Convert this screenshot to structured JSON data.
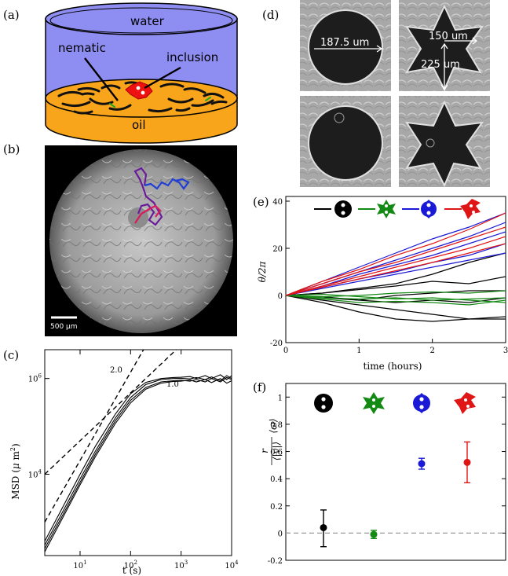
{
  "panels": {
    "a": {
      "label": "(a)",
      "water": "water",
      "nematic": "nematic",
      "inclusion": "inclusion",
      "oil": "oil",
      "colors": {
        "water": "#8e8ef2",
        "oil": "#f9a51b",
        "inclusion": "#ee1111"
      }
    },
    "b": {
      "label": "(b)",
      "scalebar": "500 µm",
      "track_colors": [
        "#6a1b9a",
        "#1f3fd6",
        "#d81b60"
      ]
    },
    "d": {
      "label": "(d)",
      "diameter": "187.5 um",
      "inner": "150 um",
      "outer": "225 um"
    },
    "e": {
      "label": "(e)"
    },
    "c": {
      "label": "(c)"
    },
    "f": {
      "label": "(f)"
    }
  },
  "chart_data": [
    {
      "id": "c",
      "type": "line",
      "scale": "log-log",
      "xlabel": "t (s)",
      "ylabel": "MSD (μ m²)",
      "ylabel_parts": {
        "main": "MSD (",
        "mu": "μ",
        "unit": " m",
        "exp": "2",
        "close": ")"
      },
      "xlim": [
        2,
        10000
      ],
      "ylim": [
        200,
        4000000
      ],
      "xticks": [
        {
          "value": 10,
          "base": "10",
          "exp": "1"
        },
        {
          "value": 100,
          "base": "10",
          "exp": "2"
        },
        {
          "value": 1000,
          "base": "10",
          "exp": "3"
        },
        {
          "value": 10000,
          "base": "10",
          "exp": "4"
        }
      ],
      "yticks": [
        {
          "value": 10000,
          "base": "10",
          "exp": "4"
        },
        {
          "value": 1000000,
          "base": "10",
          "exp": "6"
        }
      ],
      "reference_lines": [
        {
          "label": "2.0",
          "slope": 2,
          "points": [
            [
              2,
              1000
            ],
            [
              180,
              4000000
            ]
          ]
        },
        {
          "label": "1.0",
          "slope": 1,
          "points": [
            [
              2,
              10000
            ],
            [
              800,
              4000000
            ]
          ]
        }
      ],
      "series": [
        {
          "values_x": [
            2,
            5,
            10,
            20,
            50,
            100,
            200,
            400,
            700,
            1000,
            1500,
            2000,
            3000,
            4000,
            6000,
            8000,
            10000
          ],
          "values_y": [
            330,
            2000,
            8000,
            30000,
            150000,
            400000,
            750000,
            950000,
            1000000,
            1010000,
            980000,
            1050000,
            950000,
            1080000,
            900000,
            1150000,
            1000000
          ]
        },
        {
          "values_x": [
            2,
            5,
            10,
            20,
            50,
            100,
            200,
            400,
            700,
            1000,
            1500,
            2000,
            3000,
            4000,
            6000,
            8000,
            10000
          ],
          "values_y": [
            400,
            2500,
            10000,
            38000,
            180000,
            480000,
            830000,
            1000000,
            1050000,
            1060000,
            1100000,
            1000000,
            1150000,
            1000000,
            1200000,
            950000,
            1150000
          ]
        },
        {
          "values_x": [
            2,
            5,
            10,
            20,
            50,
            100,
            200,
            400,
            700,
            1000,
            1500,
            2000,
            3000,
            4000,
            6000,
            8000,
            10000
          ],
          "values_y": [
            280,
            1700,
            6800,
            26000,
            130000,
            350000,
            650000,
            850000,
            900000,
            920000,
            880000,
            950000,
            850000,
            1000000,
            850000,
            1050000,
            950000
          ]
        },
        {
          "values_x": [
            2,
            5,
            10,
            20,
            50,
            100,
            200,
            400,
            700,
            1000,
            1500,
            2000,
            3000,
            4000,
            6000,
            8000,
            10000
          ],
          "values_y": [
            240,
            1500,
            6000,
            23000,
            115000,
            310000,
            600000,
            800000,
            870000,
            880000,
            930000,
            850000,
            950000,
            820000,
            1000000,
            800000,
            900000
          ]
        }
      ]
    },
    {
      "id": "e",
      "type": "line",
      "xlabel": "time (hours)",
      "ylabel": "θ/2π",
      "xlim": [
        0,
        3
      ],
      "ylim": [
        -20,
        42
      ],
      "xticks": [
        0,
        1,
        2,
        3
      ],
      "yticks": [
        -20,
        0,
        20,
        40
      ],
      "legend_placement": "top",
      "series": [
        {
          "color": "#000000",
          "x": [
            0,
            0.5,
            1,
            1.5,
            2,
            2.5,
            3
          ],
          "y": [
            0,
            1,
            3,
            5,
            9,
            14,
            18
          ]
        },
        {
          "color": "#000000",
          "x": [
            0,
            0.5,
            1,
            1.5,
            2,
            2.5,
            3
          ],
          "y": [
            0,
            1,
            2.5,
            4,
            6,
            5,
            8
          ]
        },
        {
          "color": "#000000",
          "x": [
            0,
            0.5,
            1,
            1.5,
            2,
            2.5,
            3
          ],
          "y": [
            0,
            -1,
            -2,
            0,
            1,
            2,
            2
          ]
        },
        {
          "color": "#000000",
          "x": [
            0,
            0.5,
            1,
            1.5,
            2,
            2.5,
            3
          ],
          "y": [
            0,
            -0.5,
            -2,
            -3,
            -2,
            -3,
            -1
          ]
        },
        {
          "color": "#000000",
          "x": [
            0,
            0.5,
            1,
            1.5,
            2,
            2.5,
            3
          ],
          "y": [
            0,
            -2,
            -4,
            -6,
            -8,
            -10,
            -9
          ]
        },
        {
          "color": "#000000",
          "x": [
            0,
            0.5,
            1,
            1.5,
            2,
            2.5,
            3
          ],
          "y": [
            0,
            -3,
            -7,
            -10,
            -11,
            -10,
            -10
          ]
        },
        {
          "color": "#138a13",
          "x": [
            0,
            0.5,
            1,
            1.5,
            2,
            2.5,
            3
          ],
          "y": [
            0,
            -0.5,
            0,
            1,
            1.5,
            1,
            2
          ]
        },
        {
          "color": "#138a13",
          "x": [
            0,
            0.5,
            1,
            1.5,
            2,
            2.5,
            3
          ],
          "y": [
            0,
            -1,
            -1.5,
            -1,
            -2,
            -1.5,
            -1
          ]
        },
        {
          "color": "#138a13",
          "x": [
            0,
            0.5,
            1,
            1.5,
            2,
            2.5,
            3
          ],
          "y": [
            0,
            0.5,
            -0.5,
            -1.5,
            -1,
            -2,
            -3
          ]
        },
        {
          "color": "#138a13",
          "x": [
            0,
            0.5,
            1,
            1.5,
            2,
            2.5,
            3
          ],
          "y": [
            0,
            -1.5,
            -3,
            -2.5,
            -3,
            -4,
            -2
          ]
        },
        {
          "color": "#1a1ad6",
          "x": [
            0,
            0.5,
            1,
            1.5,
            2,
            2.5,
            3
          ],
          "y": [
            0,
            6,
            12,
            18,
            24,
            29,
            35
          ]
        },
        {
          "color": "#1a1ad6",
          "x": [
            0,
            0.5,
            1,
            1.5,
            2,
            2.5,
            3
          ],
          "y": [
            0,
            5,
            10,
            15,
            20,
            25,
            31
          ]
        },
        {
          "color": "#1a1ad6",
          "x": [
            0,
            0.5,
            1,
            1.5,
            2,
            2.5,
            3
          ],
          "y": [
            0,
            4,
            9,
            13,
            17,
            22,
            27
          ]
        },
        {
          "color": "#1a1ad6",
          "x": [
            0,
            0.5,
            1,
            1.5,
            2,
            2.5,
            3
          ],
          "y": [
            0,
            3.5,
            7,
            10,
            14,
            17,
            22
          ]
        },
        {
          "color": "#1a1ad6",
          "x": [
            0,
            0.5,
            1,
            1.5,
            2,
            2.5,
            3
          ],
          "y": [
            0,
            3,
            6,
            9,
            12,
            15,
            18
          ]
        },
        {
          "color": "#e01515",
          "x": [
            0,
            0.5,
            1,
            1.5,
            2,
            2.5,
            3
          ],
          "y": [
            0,
            6,
            11,
            17,
            22,
            28,
            35
          ]
        },
        {
          "color": "#e01515",
          "x": [
            0,
            0.5,
            1,
            1.5,
            2,
            2.5,
            3
          ],
          "y": [
            0,
            5,
            10,
            14,
            19,
            24,
            29
          ]
        },
        {
          "color": "#e01515",
          "x": [
            0,
            0.5,
            1,
            1.5,
            2,
            2.5,
            3
          ],
          "y": [
            0,
            4,
            8,
            12,
            16,
            20,
            25
          ]
        },
        {
          "color": "#e01515",
          "x": [
            0,
            0.5,
            1,
            1.5,
            2,
            2.5,
            3
          ],
          "y": [
            0,
            3.5,
            7,
            10.5,
            14,
            18,
            22
          ]
        }
      ]
    },
    {
      "id": "f",
      "type": "scatter",
      "ylabel_parts": {
        "num": "r",
        "den": "⟨|v|⟩",
        "rhs": "⟨ω⟩"
      },
      "ylim": [
        -0.2,
        1.1
      ],
      "yticks": [
        -0.2,
        0,
        0.2,
        0.4,
        0.6,
        0.8,
        1
      ],
      "reference_line": 0,
      "points": [
        {
          "color": "#000000",
          "mean": 0.04,
          "low": -0.1,
          "high": 0.17
        },
        {
          "color": "#138a13",
          "mean": -0.01,
          "low": -0.04,
          "high": 0.02
        },
        {
          "color": "#1a1ad6",
          "mean": 0.51,
          "low": 0.47,
          "high": 0.55
        },
        {
          "color": "#e01515",
          "mean": 0.52,
          "low": 0.37,
          "high": 0.67
        }
      ]
    }
  ]
}
